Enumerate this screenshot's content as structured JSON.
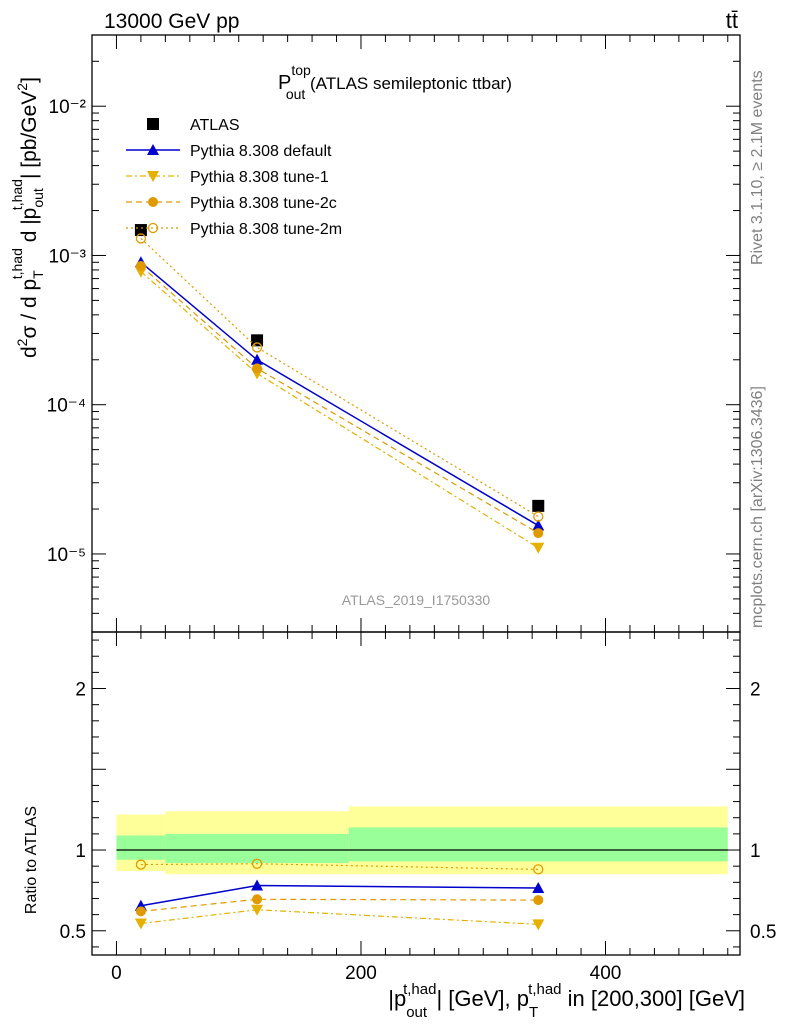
{
  "header": {
    "left": "13000 GeV pp",
    "right": "tt̄"
  },
  "side_labels": {
    "rivet": "Rivet 3.1.10, ≥ 2.1M events",
    "mcplots": "mcplots.cern.ch [arXiv:1306.3436]"
  },
  "chart_data": [
    {
      "type": "line",
      "title": "P^{top}_{out} (ATLAS semileptonic ttbar)",
      "title_main": "P",
      "title_sup": "top",
      "title_sub": "out",
      "title_rest": " (ATLAS semileptonic ttbar)",
      "watermark": "ATLAS_2019_I1750330",
      "ylabel": "d²σ / d p_T^{t,had} d |p_out^{t,had}| [pb/GeV²]",
      "yscale": "log",
      "ylim": [
        3e-06,
        0.03
      ],
      "xlim": [
        -20,
        510
      ],
      "y_ticks": [
        "10⁻²",
        "10⁻³",
        "10⁻⁴",
        "10⁻⁵"
      ],
      "legend_position": "top-left",
      "x": [
        20,
        115,
        345
      ],
      "series": [
        {
          "name": "ATLAS",
          "values": [
            0.00148,
            0.00027,
            2.1e-05
          ],
          "color": "#000000",
          "marker": "square",
          "line": "none"
        },
        {
          "name": "Pythia 8.308 default",
          "values": [
            0.0009,
            0.0002,
            1.55e-05
          ],
          "color": "#0000cc",
          "marker": "triangle-up",
          "line": "solid"
        },
        {
          "name": "Pythia 8.308 tune-1",
          "values": [
            0.00078,
            0.000162,
            1.1e-05
          ],
          "color": "#e6b000",
          "marker": "triangle-down",
          "line": "dashdot"
        },
        {
          "name": "Pythia 8.308 tune-2c",
          "values": [
            0.00085,
            0.000175,
            1.38e-05
          ],
          "color": "#e09a00",
          "marker": "circle",
          "line": "dashed"
        },
        {
          "name": "Pythia 8.308 tune-2m",
          "values": [
            0.0013,
            0.000242,
            1.78e-05
          ],
          "color": "#e09a00",
          "marker": "circle-open",
          "line": "dotted"
        }
      ]
    },
    {
      "type": "line",
      "ylabel": "Ratio to ATLAS",
      "xlabel": "|p_out^{t,had}| [GeV], p_T^{t,had} in [200,300] [GeV]",
      "ylim": [
        0.35,
        2.35
      ],
      "xlim": [
        -20,
        510
      ],
      "x_ticks": [
        0,
        200,
        400
      ],
      "y_ticks": [
        0.5,
        1,
        2
      ],
      "x": [
        20,
        115,
        345
      ],
      "uncertainty_bands": [
        {
          "x_from": 0,
          "x_to": 40,
          "green": [
            0.94,
            1.09
          ],
          "yellow": [
            0.87,
            1.22
          ]
        },
        {
          "x_from": 40,
          "x_to": 190,
          "green": [
            0.92,
            1.1
          ],
          "yellow": [
            0.85,
            1.24
          ]
        },
        {
          "x_from": 190,
          "x_to": 500,
          "green": [
            0.93,
            1.14
          ],
          "yellow": [
            0.85,
            1.27
          ]
        }
      ],
      "band_colors": {
        "green": "#99ff99",
        "yellow": "#ffff99"
      },
      "series": [
        {
          "name": "Pythia 8.308 default",
          "values": [
            0.655,
            0.78,
            0.765
          ],
          "color": "#0000cc",
          "marker": "triangle-up",
          "line": "solid"
        },
        {
          "name": "Pythia 8.308 tune-1",
          "values": [
            0.545,
            0.63,
            0.54
          ],
          "color": "#e6b000",
          "marker": "triangle-down",
          "line": "dashdot"
        },
        {
          "name": "Pythia 8.308 tune-2c",
          "values": [
            0.62,
            0.695,
            0.69
          ],
          "color": "#e09a00",
          "marker": "circle",
          "line": "dashed"
        },
        {
          "name": "Pythia 8.308 tune-2m",
          "values": [
            0.91,
            0.915,
            0.88
          ],
          "color": "#e09a00",
          "marker": "circle-open",
          "line": "dotted"
        }
      ]
    }
  ]
}
